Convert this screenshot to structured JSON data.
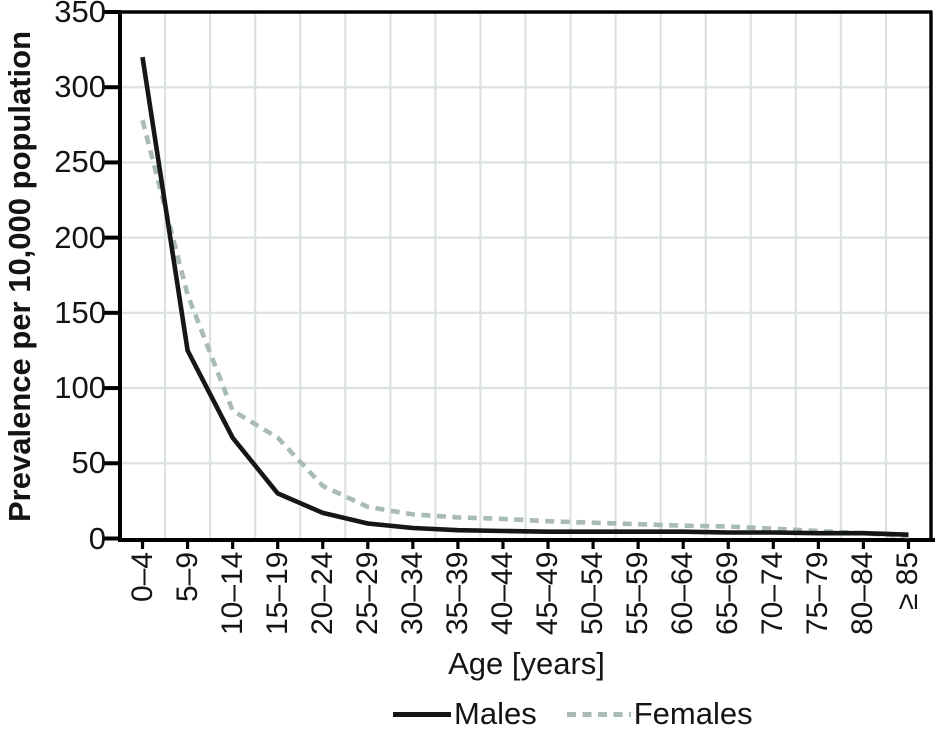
{
  "chart_data": {
    "type": "line",
    "title": "",
    "xlabel": "Age [years]",
    "ylabel": "Prevalence per 10,000 population",
    "categories": [
      "0–4",
      "5–9",
      "10–14",
      "15–19",
      "20–24",
      "25–29",
      "30–34",
      "35–39",
      "40–44",
      "45–49",
      "50–54",
      "55–59",
      "60–64",
      "65–69",
      "70–74",
      "75–79",
      "80–84",
      "≥ 85"
    ],
    "series": [
      {
        "name": "Males",
        "style": "solid",
        "color": "#161616",
        "values": [
          320,
          125,
          67,
          30,
          17,
          10,
          7,
          5.5,
          5,
          4.5,
          4.5,
          4.5,
          4.5,
          4,
          4,
          3.5,
          3.5,
          2.5
        ]
      },
      {
        "name": "Females",
        "style": "dashed",
        "color": "#a9bbb5",
        "values": [
          278,
          162,
          85,
          67,
          35,
          21,
          16,
          14,
          13,
          11.5,
          10.5,
          9.5,
          8.5,
          8,
          6.5,
          5,
          3.5,
          1.5
        ]
      }
    ],
    "ylim": [
      0,
      350
    ],
    "yticks": [
      0,
      50,
      100,
      150,
      200,
      250,
      300,
      350
    ],
    "grid": true,
    "grid_color": "#dbe2e1",
    "axis_color": "#000000",
    "legend_position": "bottom"
  }
}
